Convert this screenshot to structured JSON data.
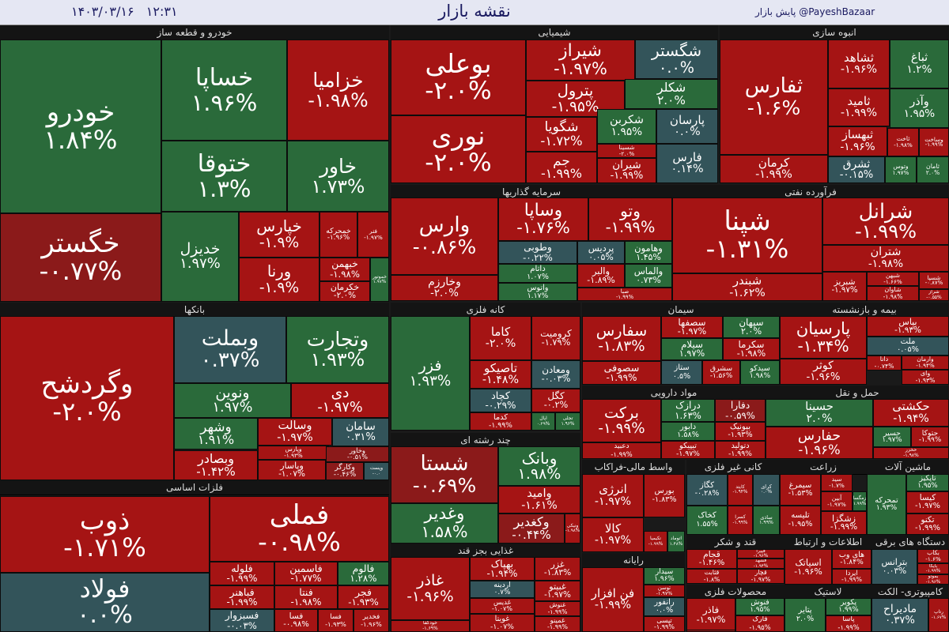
{
  "header": {
    "title": "نقشه بازار",
    "date": "۱۴۰۳/۰۳/۱۶",
    "time": "۱۲:۳۱",
    "handle": "@PayeshBazaar",
    "handle_label": "پایش بازار"
  },
  "colors": {
    "negative": "#a51414",
    "negative_dark": "#8b1a1a",
    "positive": "#2a6a3a",
    "neutral": "#33545a"
  },
  "sectors": [
    {
      "name": "خودرو  و قطعه ساز",
      "tiles": [
        {
          "s": "خودرو",
          "c": "۱.۸۴%",
          "t": "pos"
        },
        {
          "s": "خساپا",
          "c": "۱.۹۶%",
          "t": "pos"
        },
        {
          "s": "خزامیا",
          "c": "-۱.۹۸%",
          "t": "neg"
        },
        {
          "s": "ختوقا",
          "c": "۱.۳%",
          "t": "pos"
        },
        {
          "s": "خاور",
          "c": "۱.۷۳%",
          "t": "pos"
        },
        {
          "s": "خگستر",
          "c": "-۰.۷۷%",
          "t": "neg2"
        },
        {
          "s": "خدیزل",
          "c": "۱.۹۷%",
          "t": "pos"
        },
        {
          "s": "خپارس",
          "c": "-۱.۹%",
          "t": "neg"
        },
        {
          "s": "خمحرکه",
          "c": "-۱.۹۶%",
          "t": "neg"
        },
        {
          "s": "فنر",
          "c": "-۱.۹۷%",
          "t": "neg"
        },
        {
          "s": "ورنا",
          "c": "-۱.۹%",
          "t": "neg"
        },
        {
          "s": "خبهمن",
          "c": "-۱.۹۸%",
          "t": "neg"
        },
        {
          "s": "خکرمان",
          "c": "-۲.۰%",
          "t": "neg"
        },
        {
          "s": "خموتور",
          "c": "۱.۹۷%",
          "t": "pos"
        }
      ]
    },
    {
      "name": "شیمیایی",
      "tiles": [
        {
          "s": "بوعلی",
          "c": "-۲.۰%",
          "t": "neg"
        },
        {
          "s": "شیراز",
          "c": "-۱.۹۷%",
          "t": "neg"
        },
        {
          "s": "شگستر",
          "c": "۰.۰%",
          "t": "neu"
        },
        {
          "s": "پترول",
          "c": "-۱.۹۵%",
          "t": "neg"
        },
        {
          "s": "شکلر",
          "c": "۲.۰%",
          "t": "pos"
        },
        {
          "s": "نوری",
          "c": "-۲.۰%",
          "t": "neg"
        },
        {
          "s": "شگویا",
          "c": "-۱.۷۲%",
          "t": "neg"
        },
        {
          "s": "شکربن",
          "c": "۱.۹۵%",
          "t": "pos"
        },
        {
          "s": "پارسان",
          "c": "۰.۰%",
          "t": "neu"
        },
        {
          "s": "جم",
          "c": "-۱.۹۹%",
          "t": "neg"
        },
        {
          "s": "شسینا",
          "c": "-۲.۰%",
          "t": "neg"
        },
        {
          "s": "شیران",
          "c": "-۱.۹۹%",
          "t": "neg"
        },
        {
          "s": "فارس",
          "c": "۰.۱۴%",
          "t": "neu"
        }
      ]
    },
    {
      "name": "انبوه سازی",
      "tiles": [
        {
          "s": "ثفارس",
          "c": "-۱.۶%",
          "t": "neg"
        },
        {
          "s": "ثشاهد",
          "c": "-۱.۹۶%",
          "t": "neg"
        },
        {
          "s": "ثباغ",
          "c": "۱.۲%",
          "t": "pos"
        },
        {
          "s": "ثامید",
          "c": "-۱.۹۹%",
          "t": "neg"
        },
        {
          "s": "وآذر",
          "c": "۱.۹۵%",
          "t": "pos"
        },
        {
          "s": "ثبهساز",
          "c": "-۱.۹۶%",
          "t": "neg"
        },
        {
          "s": "ثاخت",
          "c": "-۱.۹۸%",
          "t": "neg"
        },
        {
          "s": "وساخت",
          "c": "-۱.۹۹%",
          "t": "neg"
        },
        {
          "s": "کرمان",
          "c": "-۱.۹۹%",
          "t": "neg"
        },
        {
          "s": "ثشرق",
          "c": "-۰.۱۵%",
          "t": "neu"
        },
        {
          "s": "وتوس",
          "c": "۱.۹۷%",
          "t": "pos"
        },
        {
          "s": "ثامان",
          "c": "۲.۰%",
          "t": "pos"
        }
      ]
    },
    {
      "name": "سرمایه گذاریها",
      "tiles": [
        {
          "s": "وارس",
          "c": "-۰.۸۶%",
          "t": "neg"
        },
        {
          "s": "وساپا",
          "c": "-۱.۷۶%",
          "t": "neg"
        },
        {
          "s": "وتو",
          "c": "-۱.۹۹%",
          "t": "neg"
        },
        {
          "s": "وطوبی",
          "c": "-۰.۲۲%",
          "t": "neu"
        },
        {
          "s": "پردیس",
          "c": "۰.۰۵%",
          "t": "neu"
        },
        {
          "s": "وهامون",
          "c": "۱.۴۵%",
          "t": "pos"
        },
        {
          "s": "وخارزم",
          "c": "-۲.۰%",
          "t": "neg"
        },
        {
          "s": "داتام",
          "c": "۱.۰۷%",
          "t": "pos"
        },
        {
          "s": "والبر",
          "c": "-۱.۸۹%",
          "t": "neg"
        },
        {
          "s": "والماس",
          "c": "۰.۷۳%",
          "t": "pos"
        },
        {
          "s": "واتوس",
          "c": "۱.۱۷%",
          "t": "pos"
        },
        {
          "s": "صبا",
          "c": "-۱.۹۹%",
          "t": "neg"
        }
      ]
    },
    {
      "name": "فرآورده نفتی",
      "tiles": [
        {
          "s": "شپنا",
          "c": "-۱.۳۱%",
          "t": "neg"
        },
        {
          "s": "شرانل",
          "c": "-۱.۹۹%",
          "t": "neg"
        },
        {
          "s": "شتران",
          "c": "-۱.۹۸%",
          "t": "neg"
        },
        {
          "s": "شبندر",
          "c": "-۱.۶۲%",
          "t": "neg"
        },
        {
          "s": "شبریز",
          "c": "-۱.۹۷%",
          "t": "neg"
        },
        {
          "s": "شبهن",
          "c": "-۱.۶۶%",
          "t": "neg"
        },
        {
          "s": "شاوان",
          "c": "-۱.۹۸%",
          "t": "neg"
        },
        {
          "s": "شسپا",
          "c": "-۰.۸۷%",
          "t": "neg"
        },
        {
          "s": "شراز",
          "c": "-۰.۵۵%",
          "t": "neg"
        }
      ]
    },
    {
      "name": "بانکها",
      "tiles": [
        {
          "s": "وگردشح",
          "c": "-۲.۰%",
          "t": "neg"
        },
        {
          "s": "وبملت",
          "c": "۰.۳۷%",
          "t": "neu"
        },
        {
          "s": "وتجارت",
          "c": "۱.۹۳%",
          "t": "pos"
        },
        {
          "s": "ونوین",
          "c": "۱.۹۷%",
          "t": "pos"
        },
        {
          "s": "دی",
          "c": "-۱.۹۷%",
          "t": "neg"
        },
        {
          "s": "وشهر",
          "c": "۱.۹۱%",
          "t": "pos"
        },
        {
          "s": "وسالت",
          "c": "-۱.۹۷%",
          "t": "neg"
        },
        {
          "s": "سامان",
          "c": "۰.۳۱%",
          "t": "neu"
        },
        {
          "s": "وپارس",
          "c": "-۱.۹۳%",
          "t": "neg"
        },
        {
          "s": "وخاور",
          "c": "-۰.۵۱%",
          "t": "neg2"
        },
        {
          "s": "وبصادر",
          "c": "-۱.۴۲%",
          "t": "neg"
        },
        {
          "s": "وپاسار",
          "c": "-۱.۰۷%",
          "t": "neg"
        },
        {
          "s": "وکارگر",
          "c": "-۰.۴۶%",
          "t": "neg2"
        },
        {
          "s": "وپست",
          "c": "-۰.۰",
          "t": "neu"
        }
      ]
    },
    {
      "name": "کانه فلزی",
      "tiles": [
        {
          "s": "فزر",
          "c": "۱.۹۳%",
          "t": "pos"
        },
        {
          "s": "کاما",
          "c": "-۲.۰%",
          "t": "neg"
        },
        {
          "s": "کرومیت",
          "c": "-۱.۷۹%",
          "t": "neg"
        },
        {
          "s": "تاصیکو",
          "c": "-۱.۴۸%",
          "t": "neg"
        },
        {
          "s": "ومعادن",
          "c": "-۰.۰۳%",
          "t": "neu"
        },
        {
          "s": "کچاد",
          "c": "-۰.۲۹%",
          "t": "neu"
        },
        {
          "s": "کگل",
          "c": "-۰.۲%",
          "t": "neg"
        },
        {
          "s": "کدما",
          "c": "-۱.۹۹%",
          "t": "neg"
        },
        {
          "s": "اپال",
          "c": "۰.۲۹%",
          "t": "pos"
        },
        {
          "s": "تجلی",
          "c": "۱.۹۶%",
          "t": "pos"
        }
      ]
    },
    {
      "name": "سیمان",
      "tiles": [
        {
          "s": "سفارس",
          "c": "-۱.۸۳%",
          "t": "neg"
        },
        {
          "s": "سصفها",
          "c": "-۱.۹۷%",
          "t": "neg"
        },
        {
          "s": "سپهان",
          "c": "۲.۰%",
          "t": "pos"
        },
        {
          "s": "سیلام",
          "c": "۱.۹۷%",
          "t": "pos"
        },
        {
          "s": "سکرما",
          "c": "-۱.۹۸%",
          "t": "neg"
        },
        {
          "s": "سصوفی",
          "c": "-۱.۹۹%",
          "t": "neg"
        },
        {
          "s": "ستاز",
          "c": "۰.۵%",
          "t": "neu"
        },
        {
          "s": "سشرق",
          "c": "-۱.۵۶%",
          "t": "neg"
        },
        {
          "s": "سیدکو",
          "c": "۱.۹۸%",
          "t": "pos"
        }
      ]
    },
    {
      "name": "بیمه و بازنشسته",
      "tiles": [
        {
          "s": "پارسیان",
          "c": "-۱.۳۴%",
          "t": "neg"
        },
        {
          "s": "بپاس",
          "c": "-۱.۹۳%",
          "t": "neg"
        },
        {
          "s": "ملت",
          "c": "۰.۰۵%",
          "t": "neu"
        },
        {
          "s": "کوثر",
          "c": "-۱.۹۶%",
          "t": "neg"
        },
        {
          "s": "دانا",
          "c": "-۰.۷۴%",
          "t": "neg"
        },
        {
          "s": "وآرمان",
          "c": "-۱.۹۴%",
          "t": "neg"
        },
        {
          "s": "وای",
          "c": "-۱.۹۳%",
          "t": "neg"
        }
      ]
    },
    {
      "name": "چند رشته ای",
      "tiles": [
        {
          "s": "شستا",
          "c": "-۰.۶۹%",
          "t": "neg2"
        },
        {
          "s": "وبانک",
          "c": "۱.۹۸%",
          "t": "pos"
        },
        {
          "s": "وامید",
          "c": "-۱.۶۱%",
          "t": "neg"
        },
        {
          "s": "وغدیر",
          "c": "۱.۵۸%",
          "t": "pos"
        },
        {
          "s": "وکغدیر",
          "c": "-۰.۴۴%",
          "t": "neg2"
        },
        {
          "s": "ونیکی",
          "c": "-۱.۹۸%",
          "t": "neg"
        }
      ]
    },
    {
      "name": "مواد دارویی",
      "tiles": [
        {
          "s": "برکت",
          "c": "-۱.۹۹%",
          "t": "neg"
        },
        {
          "s": "درازک",
          "c": "۱.۶۳%",
          "t": "pos"
        },
        {
          "s": "دفارا",
          "c": "-۰.۵۹%",
          "t": "neg2"
        },
        {
          "s": "دابور",
          "c": "۱.۵۸%",
          "t": "pos"
        },
        {
          "s": "بیونیک",
          "c": "-۱.۹۳%",
          "t": "neg"
        },
        {
          "s": "دعبید",
          "c": "-۱.۹۹%",
          "t": "neg"
        },
        {
          "s": "تیپیکو",
          "c": "-۱.۹۷%",
          "t": "neg"
        },
        {
          "s": "دتولید",
          "c": "-۱.۹۹%",
          "t": "neg"
        }
      ]
    },
    {
      "name": "حمل و نقل",
      "tiles": [
        {
          "s": "حسینا",
          "c": "۲.۰%",
          "t": "pos"
        },
        {
          "s": "حکشتی",
          "c": "-۱.۹۴%",
          "t": "neg"
        },
        {
          "s": "حفارس",
          "c": "-۱.۹۶%",
          "t": "neg"
        },
        {
          "s": "حسیر",
          "c": "۱.۹۷%",
          "t": "pos"
        },
        {
          "s": "حتوکا",
          "c": "-۱.۹۹%",
          "t": "neg"
        },
        {
          "s": "حخزر",
          "c": "-۱.۹۸%",
          "t": "neg"
        }
      ]
    },
    {
      "name": "واسط مالی-فراکاب",
      "tiles": [
        {
          "s": "انرژی",
          "c": "-۱.۹۷%",
          "t": "neg"
        },
        {
          "s": "بورس",
          "c": "-۱.۸۳%",
          "t": "neg"
        },
        {
          "s": "کالا",
          "c": "-۱.۹۷%",
          "t": "neg"
        },
        {
          "s": "تکیمیا",
          "c": "-۱.۹۹%",
          "t": "neg"
        },
        {
          "s": "اتوماد",
          "c": "۱.۴۸%",
          "t": "pos"
        }
      ]
    },
    {
      "name": "کانی غیر فلزی",
      "tiles": [
        {
          "s": "کگاز",
          "c": "-۰.۲۸%",
          "t": "neu"
        },
        {
          "s": "کایتد",
          "c": "-۱.۹۴%",
          "t": "neg"
        },
        {
          "s": "کرای",
          "c": "۰.۰%",
          "t": "neu"
        },
        {
          "s": "کخاک",
          "c": "۱.۵۵%",
          "t": "pos"
        },
        {
          "s": "کسرا",
          "c": "-۱.۹۹%",
          "t": "neg"
        },
        {
          "s": "ساذی",
          "c": "۱.۹۹%",
          "t": "pos"
        }
      ]
    },
    {
      "name": "زراعت",
      "tiles": [
        {
          "s": "سیمرغ",
          "c": "-۱.۵۳%",
          "t": "neg"
        },
        {
          "s": "سید",
          "c": "-۱.۷%",
          "t": "neg"
        },
        {
          "s": "آبین",
          "c": "-۱.۹۷%",
          "t": "neg"
        },
        {
          "s": "زمگسا",
          "c": "۱.۹۹%",
          "t": "pos"
        },
        {
          "s": "تلیسه",
          "c": "-۱.۹۵%",
          "t": "neg"
        },
        {
          "s": "زشگزا",
          "c": "-۱.۹۹%",
          "t": "neg"
        }
      ]
    },
    {
      "name": "ماشین آلات",
      "tiles": [
        {
          "s": "تمحرکه",
          "c": "۱.۹۳%",
          "t": "pos"
        },
        {
          "s": "تاپکیز",
          "c": "۱.۹۵%",
          "t": "pos"
        },
        {
          "s": "کیسا",
          "c": "-۱.۹۷%",
          "t": "neg"
        },
        {
          "s": "تکنو",
          "c": "-۱.۹۹%",
          "t": "neg"
        }
      ]
    },
    {
      "name": "فلزات اساسی",
      "tiles": [
        {
          "s": "ذوب",
          "c": "-۱.۷۱%",
          "t": "neg"
        },
        {
          "s": "فملی",
          "c": "-۰.۹۸%",
          "t": "neg"
        },
        {
          "s": "فولاد",
          "c": "۰.۰%",
          "t": "neu"
        },
        {
          "s": "فلوله",
          "c": "-۱.۹۹%",
          "t": "neg"
        },
        {
          "s": "فاسمین",
          "c": "-۱.۷۷%",
          "t": "neg"
        },
        {
          "s": "فالوم",
          "c": "۱.۲۸%",
          "t": "pos"
        },
        {
          "s": "فباهنر",
          "c": "-۱.۹۹%",
          "t": "neg"
        },
        {
          "s": "فنتا",
          "c": "-۱.۹۸%",
          "t": "neg"
        },
        {
          "s": "فجر",
          "c": "-۱.۹۳%",
          "t": "neg"
        },
        {
          "s": "فسبزوار",
          "c": "-۰.۰۳%",
          "t": "neu"
        },
        {
          "s": "فسا",
          "c": "-۰.۹۸%",
          "t": "neg"
        },
        {
          "s": "فسا",
          "c": "-۱.۹۳%",
          "t": "neg"
        },
        {
          "s": "فخدیر",
          "c": "-۱.۹۶%",
          "t": "neg"
        }
      ]
    },
    {
      "name": "غذایی بجز قند",
      "tiles": [
        {
          "s": "غاذر",
          "c": "-۱.۹۶%",
          "t": "neg"
        },
        {
          "s": "بهپاک",
          "c": "-۱.۹۴%",
          "t": "neg"
        },
        {
          "s": "غزر",
          "c": "-۱.۸۳%",
          "t": "neg"
        },
        {
          "s": "آردینه",
          "c": "۰.۷%",
          "t": "neu"
        },
        {
          "s": "غبیتو",
          "c": "-۱.۹۷%",
          "t": "neg"
        },
        {
          "s": "خودکفا",
          "c": "-۱.۶۹%",
          "t": "neg"
        },
        {
          "s": "غدیس",
          "c": "-۱.۰۷%",
          "t": "neg"
        },
        {
          "s": "غنوش",
          "c": "-۱.۹۹%",
          "t": "neg"
        },
        {
          "s": "غویتا",
          "c": "-۱.۰۷%",
          "t": "neg"
        },
        {
          "s": "غمینو",
          "c": "-۱.۹۹%",
          "t": "neg"
        }
      ]
    },
    {
      "name": "رایانه",
      "tiles": [
        {
          "s": "فن افزار",
          "c": "-۱.۹۹%",
          "t": "neg"
        },
        {
          "s": "سیدار",
          "c": "۱.۹۶%",
          "t": "pos"
        },
        {
          "s": "توسن",
          "c": "-۱.۹۷%",
          "t": "neg"
        },
        {
          "s": "رانفور",
          "c": "۰.۰%",
          "t": "neu"
        },
        {
          "s": "تپسی",
          "c": "-۱.۹۹%",
          "t": "neg"
        }
      ]
    },
    {
      "name": "قند و شکر",
      "tiles": [
        {
          "s": "قجام",
          "c": "-۱.۴۶%",
          "t": "neg"
        },
        {
          "s": "قپیرا",
          "c": "-۱.۹۶%",
          "t": "neg"
        },
        {
          "s": "قشهد",
          "c": "-۱.۹۴%",
          "t": "neg"
        },
        {
          "s": "قثابت",
          "c": "-۱.۸%",
          "t": "neg"
        },
        {
          "s": "قچار",
          "c": "-۱.۹۷%",
          "t": "neg"
        }
      ]
    },
    {
      "name": "اطلاعات و ارتباط",
      "tiles": [
        {
          "s": "اسیاتک",
          "c": "-۱.۹۶%",
          "t": "neg"
        },
        {
          "s": "های وب",
          "c": "-۱.۸۴%",
          "t": "neg"
        },
        {
          "s": "ایردا",
          "c": "-۱.۹۹%",
          "t": "neg"
        }
      ]
    },
    {
      "name": "دستگاه های برقی",
      "tiles": [
        {
          "s": "بترانس",
          "c": "۰.۰۳%",
          "t": "neu"
        },
        {
          "s": "بکاب",
          "c": "-۱.۶%",
          "t": "neg"
        },
        {
          "s": "بایکا",
          "c": "-۱.۹۹%",
          "t": "neg"
        },
        {
          "s": "بموتو",
          "c": "-۱.۹۶%",
          "t": "neg"
        }
      ]
    },
    {
      "name": "محصولات فلزی",
      "tiles": [
        {
          "s": "فاذر",
          "c": "-۱.۹۷%",
          "t": "neg"
        },
        {
          "s": "فنوش",
          "c": "۱.۹۵%",
          "t": "pos"
        },
        {
          "s": "فارک",
          "c": "-۱.۹۵%",
          "t": "neg"
        },
        {
          "s": "فرسول",
          "c": "-۱.۹%",
          "t": "neg"
        }
      ]
    },
    {
      "name": "لاستیک",
      "tiles": [
        {
          "s": "پتایر",
          "c": "۲.۰%",
          "t": "pos"
        },
        {
          "s": "پکویر",
          "c": "۱.۹۹%",
          "t": "pos"
        },
        {
          "s": "پاسا",
          "c": "-۱.۹۹%",
          "t": "neg"
        }
      ]
    },
    {
      "name": "کامپیوتری- الکت",
      "tiles": [
        {
          "s": "مادیراح",
          "c": "۰.۳۷%",
          "t": "neu"
        },
        {
          "s": "رتاپ",
          "c": "-۱.۶۷%",
          "t": "neg"
        }
      ]
    }
  ]
}
